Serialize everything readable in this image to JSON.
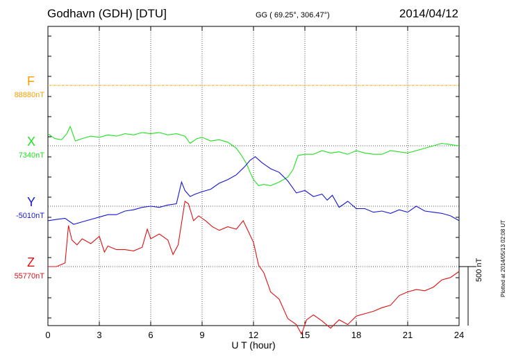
{
  "header": {
    "station": "Godhavn (GDH)  [DTU]",
    "coords": "GG ( 69.25°, 306.47°)",
    "date": "2014/04/12"
  },
  "components": [
    {
      "name": "F",
      "base": "88880nT",
      "color": "#f5a000"
    },
    {
      "name": "X",
      "base": "7340nT",
      "color": "#1fe11f"
    },
    {
      "name": "Y",
      "base": "-5010nT",
      "color": "#1515d6"
    },
    {
      "name": "Z",
      "base": "55770nT",
      "color": "#e01010"
    }
  ],
  "scale_label": "500 nT",
  "plotted_note": "Plotted at 2014/05/13 02:08 UT",
  "chart_data": {
    "type": "line",
    "xlabel": "U T (hour)",
    "xlim": [
      0,
      24
    ],
    "x_ticks": [
      "0",
      "3",
      "6",
      "9",
      "12",
      "15",
      "18",
      "21",
      "24"
    ],
    "grid": true,
    "units": "nT",
    "series": [
      {
        "name": "F",
        "baseline": 88880,
        "x": [
          0,
          24
        ],
        "dev": [
          0,
          0
        ]
      },
      {
        "name": "X",
        "baseline": 7340,
        "x": [
          0,
          0.4,
          0.8,
          1.1,
          1.3,
          1.6,
          2.0,
          2.5,
          3.0,
          3.5,
          4.0,
          4.5,
          5.0,
          5.5,
          6.0,
          6.5,
          7.0,
          7.5,
          8.0,
          8.3,
          8.7,
          9.0,
          9.5,
          10.0,
          10.5,
          11.0,
          11.3,
          11.6,
          11.8,
          12.0,
          12.3,
          12.6,
          13.0,
          13.5,
          14.0,
          14.3,
          14.6,
          15.0,
          15.5,
          16.0,
          16.5,
          17.0,
          17.5,
          18.0,
          18.5,
          19.0,
          19.5,
          20.0,
          20.5,
          21.0,
          21.5,
          22.0,
          22.5,
          23.0,
          23.5,
          24.0
        ],
        "dev": [
          100,
          60,
          50,
          100,
          160,
          40,
          60,
          80,
          70,
          90,
          80,
          100,
          90,
          110,
          100,
          110,
          90,
          100,
          80,
          20,
          60,
          70,
          40,
          50,
          30,
          -20,
          -80,
          -150,
          -220,
          -280,
          -330,
          -320,
          -330,
          -300,
          -260,
          -200,
          -80,
          -70,
          -70,
          -40,
          -60,
          -50,
          -70,
          -40,
          -60,
          -70,
          -70,
          -40,
          -50,
          -60,
          -40,
          -20,
          0,
          20,
          10,
          0
        ]
      },
      {
        "name": "Y",
        "baseline": -5010,
        "x": [
          0,
          0.5,
          1.0,
          1.5,
          2.0,
          2.5,
          3.0,
          3.5,
          4.0,
          4.5,
          5.0,
          5.5,
          6.0,
          6.5,
          7.0,
          7.5,
          7.8,
          8.0,
          8.3,
          8.6,
          9.0,
          9.5,
          10.0,
          10.5,
          11.0,
          11.5,
          11.8,
          12.1,
          12.5,
          13.0,
          13.5,
          14.0,
          14.5,
          15.0,
          15.5,
          16.0,
          16.3,
          16.6,
          17.0,
          17.5,
          18.0,
          18.5,
          19.0,
          19.5,
          20.0,
          20.5,
          21.0,
          21.5,
          22.0,
          22.5,
          23.0,
          23.5,
          24.0
        ],
        "dev": [
          -120,
          -110,
          -100,
          -150,
          -130,
          -110,
          -90,
          -70,
          -70,
          -40,
          -30,
          -10,
          0,
          -10,
          10,
          20,
          200,
          130,
          80,
          100,
          120,
          140,
          190,
          220,
          260,
          330,
          380,
          410,
          360,
          310,
          280,
          210,
          110,
          130,
          80,
          100,
          50,
          90,
          -10,
          40,
          -20,
          -20,
          -50,
          -40,
          -60,
          -30,
          -50,
          0,
          -40,
          -50,
          -60,
          -80,
          -120
        ]
      },
      {
        "name": "Z",
        "baseline": 55770,
        "x": [
          0,
          0.5,
          1.0,
          1.2,
          1.4,
          1.7,
          2.0,
          2.5,
          3.0,
          3.3,
          3.5,
          4.0,
          4.5,
          5.0,
          5.5,
          5.8,
          6.0,
          6.5,
          7.0,
          7.3,
          7.6,
          8.0,
          8.2,
          8.5,
          8.8,
          9.2,
          9.6,
          10.0,
          10.5,
          11.0,
          11.4,
          11.7,
          12.0,
          12.3,
          12.6,
          13.0,
          13.5,
          14.0,
          14.5,
          14.8,
          15.1,
          15.5,
          16.0,
          16.5,
          17.0,
          17.5,
          18.0,
          18.5,
          19.0,
          19.5,
          20.0,
          20.5,
          21.0,
          21.5,
          22.0,
          22.5,
          23.0,
          23.5,
          24.0
        ],
        "dev": [
          0,
          0,
          30,
          340,
          220,
          180,
          230,
          190,
          250,
          120,
          170,
          140,
          140,
          130,
          160,
          310,
          230,
          270,
          220,
          100,
          180,
          540,
          520,
          380,
          420,
          380,
          330,
          300,
          330,
          310,
          380,
          290,
          200,
          10,
          -50,
          -210,
          -270,
          -430,
          -480,
          -560,
          -440,
          -400,
          -450,
          -510,
          -440,
          -480,
          -410,
          -390,
          -370,
          -340,
          -320,
          -240,
          -210,
          -190,
          -200,
          -170,
          -110,
          -90,
          -40
        ]
      }
    ]
  }
}
